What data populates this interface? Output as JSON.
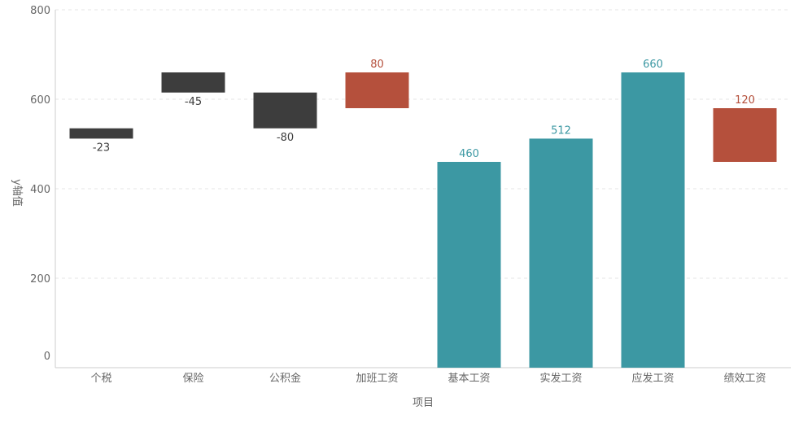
{
  "chart_data": {
    "type": "bar",
    "subtype": "waterfall",
    "categories": [
      "个税",
      "保险",
      "公积金",
      "加班工资",
      "基本工资",
      "实发工资",
      "应发工资",
      "绩效工资"
    ],
    "bars": [
      {
        "category": "个税",
        "start": 535,
        "end": 512,
        "value": -23,
        "label": "-23",
        "kind": "decrease"
      },
      {
        "category": "保险",
        "start": 660,
        "end": 615,
        "value": -45,
        "label": "-45",
        "kind": "decrease"
      },
      {
        "category": "公积金",
        "start": 615,
        "end": 535,
        "value": -80,
        "label": "-80",
        "kind": "decrease"
      },
      {
        "category": "加班工资",
        "start": 580,
        "end": 660,
        "value": 80,
        "label": "80",
        "kind": "increase"
      },
      {
        "category": "基本工资",
        "start": 0,
        "end": 460,
        "value": 460,
        "label": "460",
        "kind": "total"
      },
      {
        "category": "实发工资",
        "start": 0,
        "end": 512,
        "value": 512,
        "label": "512",
        "kind": "total"
      },
      {
        "category": "应发工资",
        "start": 0,
        "end": 660,
        "value": 660,
        "label": "660",
        "kind": "total"
      },
      {
        "category": "绩效工资",
        "start": 460,
        "end": 580,
        "value": 120,
        "label": "120",
        "kind": "increase"
      }
    ],
    "xlabel": "项目",
    "ylabel": "y轴值",
    "ylim": [
      0,
      800
    ],
    "yticks": [
      0,
      200,
      400,
      600,
      800
    ],
    "grid": true,
    "colors": {
      "decrease": "#3d3d3d",
      "increase": "#b5503c",
      "total": "#3c98a3",
      "decrease_label": "#3d3d3d",
      "increase_label": "#b5503c",
      "total_label": "#3c98a3",
      "grid": "#e6e6e6",
      "axis": "#cccccc"
    }
  }
}
